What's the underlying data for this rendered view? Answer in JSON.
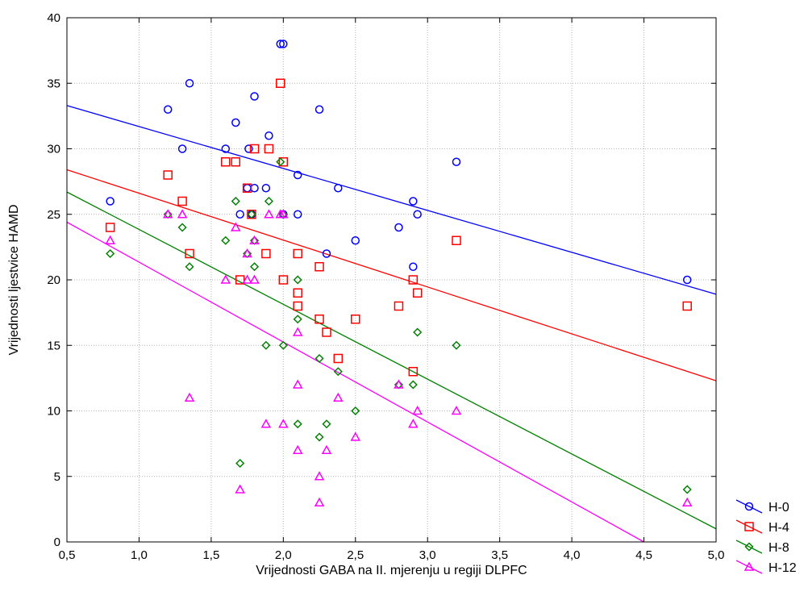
{
  "chart_data": {
    "type": "scatter",
    "xlabel": "Vrijednosti GABA na II. mjerenju u regiji DLPFC",
    "ylabel": "Vrijednosti ljestvice HAMD",
    "xlim": [
      0.5,
      5.0
    ],
    "ylim": [
      0,
      40
    ],
    "x_ticks": [
      0.5,
      1.0,
      1.5,
      2.0,
      2.5,
      3.0,
      3.5,
      4.0,
      4.5,
      5.0
    ],
    "x_tick_labels": [
      "0,5",
      "1,0",
      "1,5",
      "2,0",
      "2,5",
      "3,0",
      "3,5",
      "4,0",
      "4,5",
      "5,0"
    ],
    "y_ticks": [
      0,
      5,
      10,
      15,
      20,
      25,
      30,
      35,
      40
    ],
    "y_tick_labels": [
      "0",
      "5",
      "10",
      "15",
      "20",
      "25",
      "30",
      "35",
      "40"
    ],
    "grid": true,
    "legend_position": "bottom-right-outside",
    "series": [
      {
        "name": "H-0",
        "marker": "circle",
        "color": "#0000ff",
        "regression": [
          [
            0.5,
            33.3
          ],
          [
            5.0,
            18.9
          ]
        ],
        "points": [
          [
            0.8,
            26
          ],
          [
            1.2,
            33
          ],
          [
            1.3,
            30
          ],
          [
            1.35,
            35
          ],
          [
            1.6,
            30
          ],
          [
            1.67,
            32
          ],
          [
            1.7,
            25
          ],
          [
            1.75,
            27
          ],
          [
            1.76,
            30
          ],
          [
            1.78,
            25
          ],
          [
            1.8,
            34
          ],
          [
            1.8,
            27
          ],
          [
            1.88,
            27
          ],
          [
            1.9,
            31
          ],
          [
            1.98,
            38
          ],
          [
            2.0,
            38
          ],
          [
            2.0,
            25
          ],
          [
            2.1,
            28
          ],
          [
            2.1,
            25
          ],
          [
            2.25,
            33
          ],
          [
            2.3,
            22
          ],
          [
            2.38,
            27
          ],
          [
            2.5,
            23
          ],
          [
            2.8,
            24
          ],
          [
            2.9,
            21
          ],
          [
            2.9,
            26
          ],
          [
            2.93,
            25
          ],
          [
            3.2,
            29
          ],
          [
            4.8,
            20
          ]
        ]
      },
      {
        "name": "H-4",
        "marker": "square",
        "color": "#ff0000",
        "regression": [
          [
            0.5,
            28.4
          ],
          [
            5.0,
            12.3
          ]
        ],
        "points": [
          [
            0.8,
            24
          ],
          [
            1.2,
            28
          ],
          [
            1.3,
            26
          ],
          [
            1.35,
            22
          ],
          [
            1.6,
            29
          ],
          [
            1.67,
            29
          ],
          [
            1.7,
            20
          ],
          [
            1.75,
            27
          ],
          [
            1.78,
            25
          ],
          [
            1.8,
            30
          ],
          [
            1.88,
            22
          ],
          [
            1.9,
            30
          ],
          [
            1.98,
            35
          ],
          [
            2.0,
            29
          ],
          [
            2.0,
            20
          ],
          [
            2.1,
            22
          ],
          [
            2.1,
            19
          ],
          [
            2.1,
            18
          ],
          [
            2.25,
            21
          ],
          [
            2.25,
            17
          ],
          [
            2.3,
            16
          ],
          [
            2.38,
            14
          ],
          [
            2.5,
            17
          ],
          [
            2.8,
            18
          ],
          [
            2.9,
            20
          ],
          [
            2.9,
            13
          ],
          [
            2.93,
            19
          ],
          [
            3.2,
            23
          ],
          [
            4.8,
            18
          ]
        ]
      },
      {
        "name": "H-8",
        "marker": "diamond",
        "color": "#008000",
        "regression": [
          [
            0.5,
            26.7
          ],
          [
            5.0,
            1.0
          ]
        ],
        "points": [
          [
            0.8,
            22
          ],
          [
            1.2,
            25
          ],
          [
            1.3,
            24
          ],
          [
            1.35,
            21
          ],
          [
            1.6,
            23
          ],
          [
            1.67,
            26
          ],
          [
            1.7,
            6
          ],
          [
            1.75,
            22
          ],
          [
            1.78,
            25
          ],
          [
            1.8,
            21
          ],
          [
            1.8,
            23
          ],
          [
            1.88,
            15
          ],
          [
            1.9,
            26
          ],
          [
            1.98,
            29
          ],
          [
            2.0,
            15
          ],
          [
            2.0,
            25
          ],
          [
            2.1,
            20
          ],
          [
            2.1,
            17
          ],
          [
            2.1,
            9
          ],
          [
            2.25,
            14
          ],
          [
            2.25,
            8
          ],
          [
            2.3,
            9
          ],
          [
            2.38,
            13
          ],
          [
            2.5,
            10
          ],
          [
            2.8,
            12
          ],
          [
            2.9,
            12
          ],
          [
            2.93,
            16
          ],
          [
            3.2,
            15
          ],
          [
            4.8,
            4
          ]
        ]
      },
      {
        "name": "H-12",
        "marker": "triangle",
        "color": "#ff00ff",
        "regression": [
          [
            0.5,
            24.4
          ],
          [
            4.5,
            0.0
          ]
        ],
        "points": [
          [
            0.8,
            23
          ],
          [
            1.2,
            25
          ],
          [
            1.3,
            25
          ],
          [
            1.35,
            11
          ],
          [
            1.6,
            20
          ],
          [
            1.67,
            24
          ],
          [
            1.7,
            4
          ],
          [
            1.75,
            22
          ],
          [
            1.75,
            20
          ],
          [
            1.8,
            20
          ],
          [
            1.8,
            23
          ],
          [
            1.88,
            9
          ],
          [
            1.9,
            25
          ],
          [
            1.98,
            25
          ],
          [
            2.0,
            9
          ],
          [
            2.0,
            25
          ],
          [
            2.1,
            16
          ],
          [
            2.1,
            12
          ],
          [
            2.1,
            7
          ],
          [
            2.25,
            5
          ],
          [
            2.25,
            3
          ],
          [
            2.3,
            7
          ],
          [
            2.38,
            11
          ],
          [
            2.5,
            8
          ],
          [
            2.8,
            12
          ],
          [
            2.9,
            9
          ],
          [
            2.93,
            10
          ],
          [
            3.2,
            10
          ],
          [
            4.8,
            3
          ]
        ]
      }
    ]
  }
}
